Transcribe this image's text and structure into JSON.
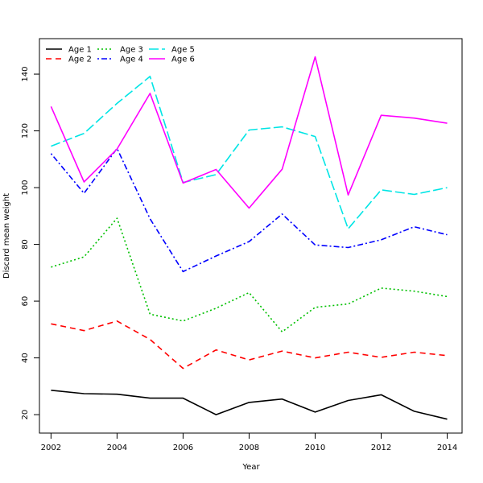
{
  "chart_data": {
    "type": "line",
    "title": "",
    "xlabel": "Year",
    "ylabel": "Discard mean weight",
    "xlim": [
      2001.65,
      2014.45
    ],
    "ylim": [
      13.5,
      152.5
    ],
    "xticks": [
      2002,
      2004,
      2006,
      2008,
      2010,
      2012,
      2014
    ],
    "yticks": [
      20,
      40,
      60,
      80,
      100,
      120,
      140
    ],
    "legend_position": "top-left",
    "x": [
      2002,
      2003,
      2004,
      2005,
      2006,
      2007,
      2008,
      2009,
      2010,
      2011,
      2012,
      2013,
      2014
    ],
    "series": [
      {
        "name": "Age 1",
        "color": "#000000",
        "dash": "solid",
        "values": [
          28.6,
          27.4,
          27.2,
          25.8,
          25.8,
          20.0,
          24.3,
          25.5,
          20.9,
          25.0,
          27.0,
          21.2,
          18.4
        ]
      },
      {
        "name": "Age 2",
        "color": "#ff0000",
        "dash": "dashed",
        "values": [
          52.0,
          49.6,
          53.0,
          46.5,
          36.3,
          42.8,
          39.3,
          42.4,
          40.0,
          42.0,
          40.2,
          42.0,
          40.8
        ]
      },
      {
        "name": "Age 3",
        "color": "#00c000",
        "dash": "dotted",
        "values": [
          72.0,
          75.6,
          89.2,
          55.4,
          53.0,
          57.5,
          63.0,
          49.2,
          57.8,
          59.0,
          64.6,
          63.5,
          61.6
        ]
      },
      {
        "name": "Age 4",
        "color": "#0000ff",
        "dash": "dotdash",
        "values": [
          112.0,
          98.0,
          113.8,
          89.0,
          70.4,
          75.9,
          81.0,
          90.7,
          79.8,
          78.9,
          81.6,
          86.2,
          83.4
        ]
      },
      {
        "name": "Age 5",
        "color": "#00e5e5",
        "dash": "longdash",
        "values": [
          114.6,
          119.1,
          129.7,
          139.2,
          101.8,
          104.6,
          120.3,
          121.4,
          118.0,
          85.5,
          99.2,
          97.6,
          100.0
        ]
      },
      {
        "name": "Age 6",
        "color": "#ff00ff",
        "dash": "solid",
        "values": [
          128.6,
          102.0,
          113.6,
          133.2,
          101.6,
          106.4,
          92.8,
          106.5,
          146.1,
          97.4,
          125.5,
          124.5,
          122.7
        ]
      }
    ]
  }
}
